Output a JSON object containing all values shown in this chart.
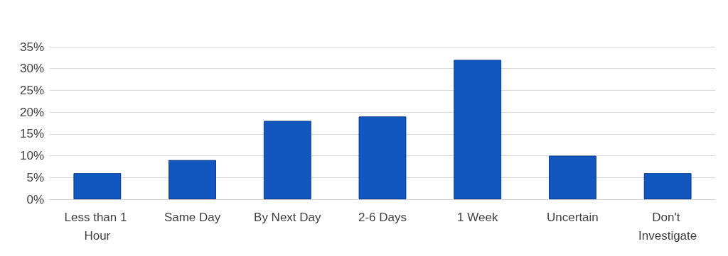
{
  "chart_data": {
    "type": "bar",
    "categories": [
      "Less than 1 Hour",
      "Same Day",
      "By Next Day",
      "2-6 Days",
      "1 Week",
      "Uncertain",
      "Don't Investigate"
    ],
    "values": [
      6,
      9,
      18,
      19,
      32,
      10,
      6
    ],
    "color": "#1256c0",
    "ylim": [
      0,
      35
    ],
    "yticks": [
      {
        "value": 0,
        "label": "0%"
      },
      {
        "value": 5,
        "label": "5%"
      },
      {
        "value": 10,
        "label": "10%"
      },
      {
        "value": 15,
        "label": "15%"
      },
      {
        "value": 20,
        "label": "20%"
      },
      {
        "value": 25,
        "label": "25%"
      },
      {
        "value": 30,
        "label": "30%"
      },
      {
        "value": 35,
        "label": "35%"
      }
    ],
    "grid": "y"
  }
}
